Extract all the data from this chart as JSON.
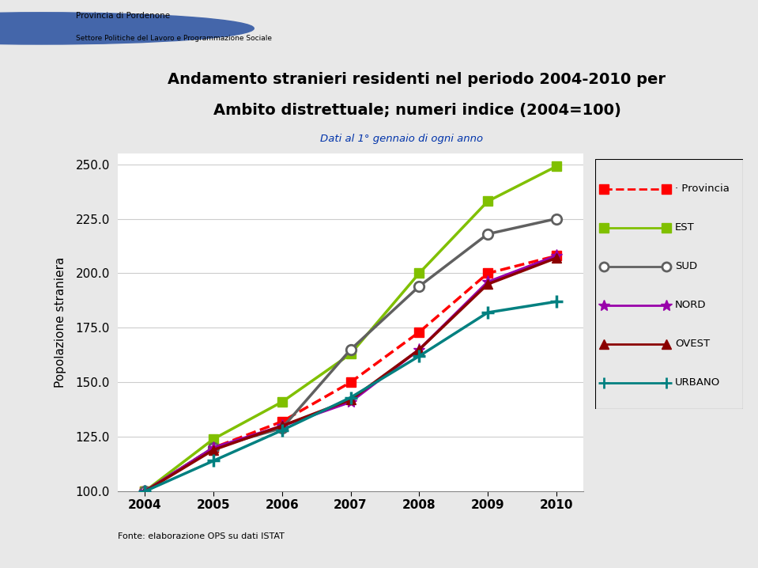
{
  "years": [
    2004,
    2005,
    2006,
    2007,
    2008,
    2009,
    2010
  ],
  "provincia": [
    100.0,
    120.0,
    132.0,
    150.0,
    173.0,
    200.0,
    208.0
  ],
  "est": [
    100.0,
    124.0,
    141.0,
    163.0,
    200.0,
    233.0,
    249.0
  ],
  "sud": [
    100.0,
    120.0,
    129.0,
    165.0,
    194.0,
    218.0,
    225.0
  ],
  "nord": [
    100.0,
    120.0,
    130.0,
    141.0,
    165.0,
    196.0,
    208.0
  ],
  "ovest": [
    100.0,
    119.0,
    130.0,
    142.0,
    165.0,
    195.0,
    207.0
  ],
  "urbano": [
    100.0,
    114.0,
    128.0,
    143.0,
    162.0,
    182.0,
    187.0
  ],
  "title_line1": "Andamento stranieri residenti nel periodo 2004-2010 per",
  "title_line2": "Ambito distrettuale; numeri indice (2004=100)",
  "subtitle": "Dati al 1° gennaio di ogni anno",
  "ylabel": "Popolazione straniera",
  "footer": "Fonte: elaborazione OPS su dati ISTAT",
  "ylim": [
    100.0,
    255.0
  ],
  "yticks": [
    100.0,
    125.0,
    150.0,
    175.0,
    200.0,
    225.0,
    250.0
  ],
  "title_bg_color": "#B8D9E8",
  "provincia_color": "#FF0000",
  "est_color": "#80C000",
  "sud_color": "#606060",
  "nord_color": "#9900AA",
  "ovest_color": "#8B0000",
  "urbano_color": "#008080",
  "header_text1": "Provincia di Pordenone",
  "header_text2": "Settore Politiche del Lavoro e Programmazione Sociale",
  "bg_color": "#E8E8E8"
}
